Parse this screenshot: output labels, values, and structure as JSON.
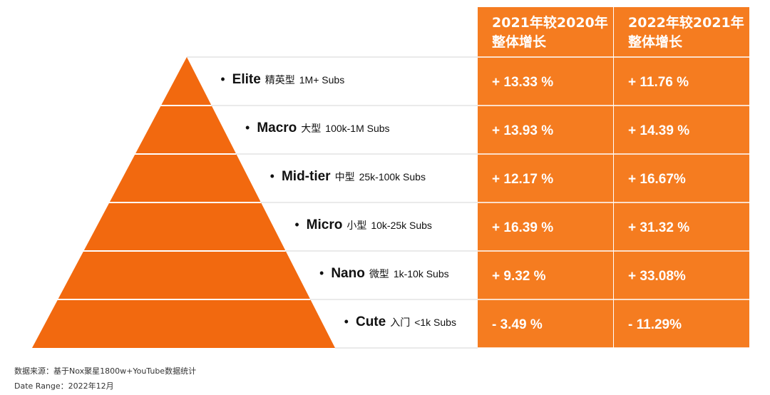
{
  "chart_data": {
    "type": "table",
    "columns": [
      "2021年较2020年\n整体增长",
      "2022年较2021年\n整体增长"
    ],
    "tiers": [
      {
        "name": "Elite",
        "cn": "精英型",
        "range": "1M+ Subs",
        "values": [
          "+ 13.33 %",
          "+ 11.76 %"
        ]
      },
      {
        "name": "Macro",
        "cn": "大型",
        "range": "100k-1M Subs",
        "values": [
          "+ 13.93 %",
          "+ 14.39 %"
        ]
      },
      {
        "name": "Mid-tier",
        "cn": "中型",
        "range": "25k-100k Subs",
        "values": [
          "+ 12.17 %",
          "+ 16.67%"
        ]
      },
      {
        "name": "Micro",
        "cn": "小型",
        "range": "10k-25k Subs",
        "values": [
          "+ 16.39 %",
          "+ 31.32 %"
        ]
      },
      {
        "name": "Nano",
        "cn": "微型",
        "range": "1k-10k Subs",
        "values": [
          "+ 9.32 %",
          "+ 33.08%"
        ]
      },
      {
        "name": "Cute",
        "cn": "入门",
        "range": "<1k Subs",
        "values": [
          "- 3.49 %",
          "- 11.29%"
        ]
      }
    ]
  },
  "header": {
    "col1_line1": "2021年较2020年",
    "col1_line2": "整体增长",
    "col2_line1": "2022年较2021年",
    "col2_line2": "整体增长"
  },
  "bullet": "•",
  "footer": {
    "source": "数据来源：基于Nox聚星1800w+YouTube数据统计",
    "date_range": "Date Range：2022年12月"
  },
  "colors": {
    "orange": "#F57C20",
    "pyramid": "#F2690F",
    "white": "#FFFFFF",
    "line": "#D6D6D6"
  }
}
